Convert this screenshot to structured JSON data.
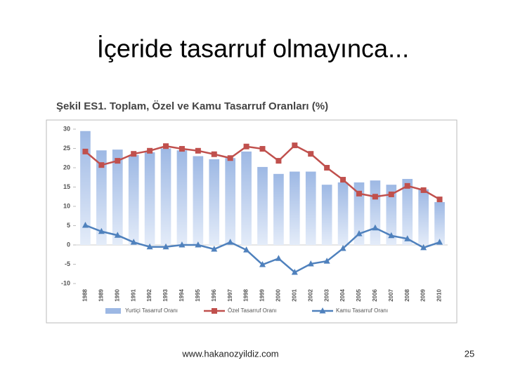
{
  "slide": {
    "title": "İçeride tasarruf olmayınca...",
    "footer": "www.hakanozyildiz.com",
    "page_number": 25
  },
  "chart_data": {
    "type": "combo",
    "title": "Şekil ES1. Toplam, Özel ve Kamu Tasarruf Oranları (%)",
    "categories": [
      "1988",
      "1989",
      "1990",
      "1991",
      "1992",
      "1993",
      "1994",
      "1995",
      "1996",
      "1997",
      "1998",
      "1999",
      "2000",
      "2001",
      "2002",
      "2003",
      "2004",
      "2005",
      "2006",
      "2007",
      "2008",
      "2009",
      "2010"
    ],
    "series": [
      {
        "name": "Yurtiçi Tasarruf Oranı",
        "type": "bar",
        "color": "#9db8e4",
        "values": [
          29.5,
          24.5,
          24.7,
          23.3,
          24,
          25,
          24.5,
          23,
          22.2,
          22.5,
          24.2,
          20.2,
          18.4,
          19,
          19,
          15.6,
          16.2,
          16.2,
          16.7,
          15.6,
          17.1,
          14.4,
          11.1
        ]
      },
      {
        "name": "Özel Tasarruf Oranı",
        "type": "line",
        "marker": "square",
        "color": "#c0504d",
        "values": [
          24.2,
          20.7,
          21.8,
          23.6,
          24.4,
          25.6,
          24.9,
          24.4,
          23.5,
          22.5,
          25.5,
          24.9,
          21.8,
          25.8,
          23.6,
          20,
          16.9,
          13.3,
          12.5,
          13.1,
          15.3,
          14.2,
          11.8
        ]
      },
      {
        "name": "Kamu Tasarruf Oranı",
        "type": "line",
        "marker": "triangle",
        "color": "#4f81bd",
        "values": [
          5.1,
          3.5,
          2.5,
          0.7,
          -0.5,
          -0.5,
          0,
          0,
          -1.1,
          0.7,
          -1.3,
          -5.1,
          -3.5,
          -7.1,
          -4.9,
          -4.2,
          -0.9,
          2.9,
          4.4,
          2.4,
          1.6,
          -0.7,
          0.7
        ]
      }
    ],
    "ylim": [
      -10,
      30
    ],
    "yticks": [
      -10,
      -5,
      0,
      5,
      10,
      15,
      20,
      25,
      30
    ],
    "legend": "bottom"
  }
}
